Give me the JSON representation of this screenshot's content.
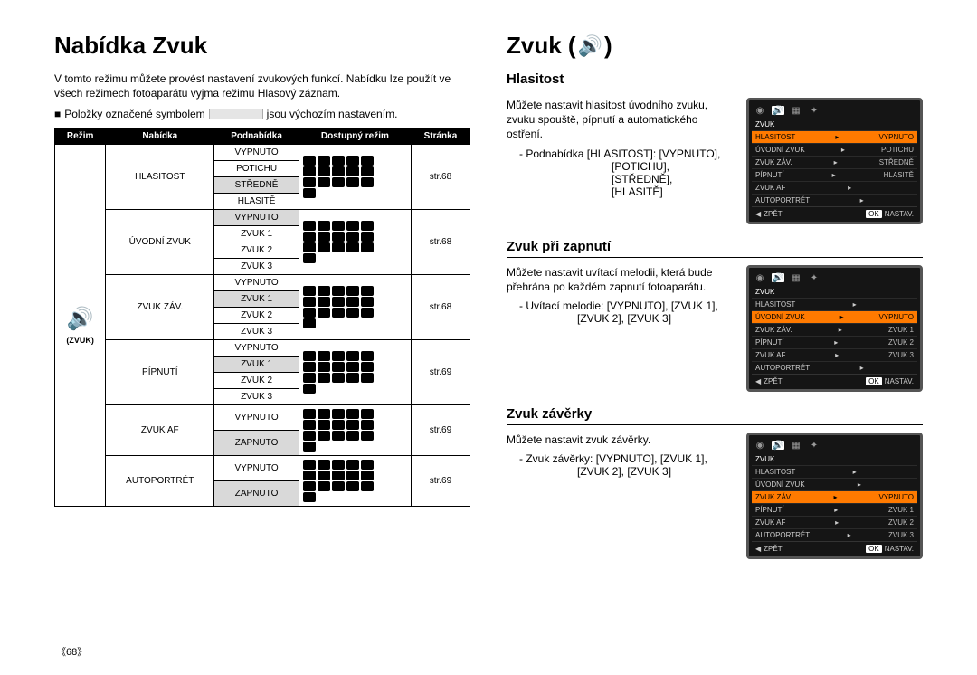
{
  "page_number": "《68》",
  "left": {
    "title": "Nabídka Zvuk",
    "intro": "V tomto režimu můžete provést nastavení zvukových funkcí.  Nabídku lze použít ve všech režimech fotoaparátu vyjma režimu Hlasový záznam.",
    "note_prefix": "Položky označené symbolem",
    "note_suffix": "jsou výchozím nastavením.",
    "header": {
      "rezim": "Režim",
      "nabidka": "Nabídka",
      "podnabidka": "Podnabídka",
      "dostupny": "Dostupný režim",
      "stranka": "Stránka"
    },
    "rezim_label": "(ZVUK)",
    "groups": [
      {
        "nabidka": "HLASITOST",
        "page": "str.68",
        "items": [
          {
            "t": "VYPNUTO",
            "sh": false
          },
          {
            "t": "POTICHU",
            "sh": false
          },
          {
            "t": "STŘEDNĚ",
            "sh": true
          },
          {
            "t": "HLASITĚ",
            "sh": false
          }
        ]
      },
      {
        "nabidka": "ÚVODNÍ ZVUK",
        "page": "str.68",
        "items": [
          {
            "t": "VYPNUTO",
            "sh": true
          },
          {
            "t": "ZVUK 1",
            "sh": false
          },
          {
            "t": "ZVUK 2",
            "sh": false
          },
          {
            "t": "ZVUK 3",
            "sh": false
          }
        ]
      },
      {
        "nabidka": "ZVUK ZÁV.",
        "page": "str.68",
        "items": [
          {
            "t": "VYPNUTO",
            "sh": false
          },
          {
            "t": "ZVUK 1",
            "sh": true
          },
          {
            "t": "ZVUK 2",
            "sh": false
          },
          {
            "t": "ZVUK 3",
            "sh": false
          }
        ]
      },
      {
        "nabidka": "PÍPNUTÍ",
        "page": "str.69",
        "items": [
          {
            "t": "VYPNUTO",
            "sh": false
          },
          {
            "t": "ZVUK 1",
            "sh": true
          },
          {
            "t": "ZVUK 2",
            "sh": false
          },
          {
            "t": "ZVUK 3",
            "sh": false
          }
        ]
      },
      {
        "nabidka": "ZVUK AF",
        "page": "str.69",
        "items": [
          {
            "t": "VYPNUTO",
            "sh": false
          },
          {
            "t": "ZAPNUTO",
            "sh": true
          }
        ]
      },
      {
        "nabidka": "AUTOPORTRÉT",
        "page": "str.69",
        "items": [
          {
            "t": "VYPNUTO",
            "sh": false
          },
          {
            "t": "ZAPNUTO",
            "sh": true
          }
        ]
      }
    ]
  },
  "right": {
    "title": "Zvuk (",
    "title_suffix": ")",
    "sections": [
      {
        "heading": "Hlasitost",
        "text": "Můžete nastavit hlasitost úvodního zvuku, zvuku spouště, pípnutí a automatického ostření.",
        "bullet": "Podnabídka [HLASITOST]:  [VYPNUTO],",
        "extra": [
          "[POTICHU],",
          "[STŘEDNĚ],",
          "[HLASITĚ]"
        ],
        "extra_class": "inset",
        "lcd": {
          "title": "ZVUK",
          "sel_index": 0,
          "rows": [
            {
              "l": "HLASITOST",
              "v": "VYPNUTO"
            },
            {
              "l": "ÚVODNÍ ZVUK",
              "v": "POTICHU"
            },
            {
              "l": "ZVUK ZÁV.",
              "v": "STŘEDNĚ"
            },
            {
              "l": "PÍPNUTÍ",
              "v": "HLASITĚ"
            },
            {
              "l": "ZVUK AF",
              "v": ""
            },
            {
              "l": "AUTOPORTRÉT",
              "v": ""
            }
          ],
          "sub_sel": 0,
          "sub": [
            "VYPNUTO",
            "POTICHU",
            "STŘEDNĚ",
            "HLASITĚ"
          ],
          "foot_back": "ZPĚT",
          "foot_ok": "OK",
          "foot_set": "NASTAV."
        }
      },
      {
        "heading": "Zvuk při zapnutí",
        "text": "Můžete nastavit uvítací melodii, která bude přehrána po každém zapnutí fotoaparátu.",
        "bullet": "Uvítací melodie:  [VYPNUTO], [ZVUK 1],",
        "extra": [
          "[ZVUK 2], [ZVUK 3]"
        ],
        "extra_class": "insetnarrow",
        "lcd": {
          "title": "ZVUK",
          "sel_index": 1,
          "rows": [
            {
              "l": "HLASITOST",
              "v": ""
            },
            {
              "l": "ÚVODNÍ ZVUK",
              "v": "VYPNUTO"
            },
            {
              "l": "ZVUK ZÁV.",
              "v": "ZVUK 1"
            },
            {
              "l": "PÍPNUTÍ",
              "v": "ZVUK 2"
            },
            {
              "l": "ZVUK AF",
              "v": "ZVUK 3"
            },
            {
              "l": "AUTOPORTRÉT",
              "v": ""
            }
          ],
          "sub_sel": 0,
          "sub": [
            "VYPNUTO",
            "ZVUK 1",
            "ZVUK 2",
            "ZVUK 3"
          ],
          "foot_back": "ZPĚT",
          "foot_ok": "OK",
          "foot_set": "NASTAV."
        }
      },
      {
        "heading": "Zvuk závěrky",
        "text": "Můžete nastavit zvuk závěrky.",
        "bullet": "Zvuk závěrky:  [VYPNUTO], [ZVUK 1],",
        "extra": [
          "[ZVUK 2], [ZVUK 3]"
        ],
        "extra_class": "insetnarrow",
        "lcd": {
          "title": "ZVUK",
          "sel_index": 2,
          "rows": [
            {
              "l": "HLASITOST",
              "v": ""
            },
            {
              "l": "ÚVODNÍ ZVUK",
              "v": ""
            },
            {
              "l": "ZVUK ZÁV.",
              "v": "VYPNUTO"
            },
            {
              "l": "PÍPNUTÍ",
              "v": "ZVUK 1"
            },
            {
              "l": "ZVUK AF",
              "v": "ZVUK 2"
            },
            {
              "l": "AUTOPORTRÉT",
              "v": "ZVUK 3"
            }
          ],
          "sub_sel": 0,
          "sub": [
            "VYPNUTO",
            "ZVUK 1",
            "ZVUK 2",
            "ZVUK 3"
          ],
          "foot_back": "ZPĚT",
          "foot_ok": "OK",
          "foot_set": "NASTAV."
        }
      }
    ]
  }
}
